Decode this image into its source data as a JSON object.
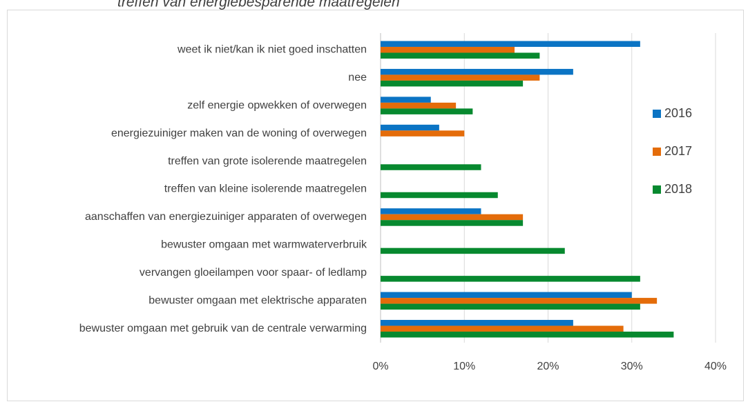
{
  "chart_data": {
    "type": "bar",
    "orientation": "horizontal",
    "title": "treffen van energiebesparende maatregelen",
    "categories": [
      "weet ik niet/kan ik niet goed inschatten",
      "nee",
      "zelf energie opwekken of overwegen",
      "energiezuiniger maken van de woning of overwegen",
      "treffen van grote isolerende maatregelen",
      "treffen van kleine isolerende maatregelen",
      "aanschaffen van energiezuiniger apparaten of overwegen",
      "bewuster omgaan met warmwaterverbruik",
      "vervangen gloeilampen voor spaar- of ledlamp",
      "bewuster omgaan met elektrische apparaten",
      "bewuster omgaan met gebruik van de centrale verwarming"
    ],
    "series": [
      {
        "name": "2016",
        "color": "#0b74c4",
        "values": [
          31,
          23,
          6,
          7,
          null,
          null,
          12,
          null,
          null,
          30,
          23
        ]
      },
      {
        "name": "2017",
        "color": "#e46c0a",
        "values": [
          16,
          19,
          9,
          10,
          null,
          null,
          17,
          null,
          null,
          33,
          29
        ]
      },
      {
        "name": "2018",
        "color": "#07892f",
        "values": [
          19,
          17,
          11,
          null,
          12,
          14,
          17,
          22,
          31,
          31,
          35
        ]
      }
    ],
    "xlim": [
      0,
      40
    ],
    "xticks": [
      {
        "value": 0,
        "label": "0%"
      },
      {
        "value": 10,
        "label": "10%"
      },
      {
        "value": 20,
        "label": "20%"
      },
      {
        "value": 30,
        "label": "30%"
      },
      {
        "value": 40,
        "label": "40%"
      }
    ],
    "grid": true,
    "legend": "right"
  }
}
